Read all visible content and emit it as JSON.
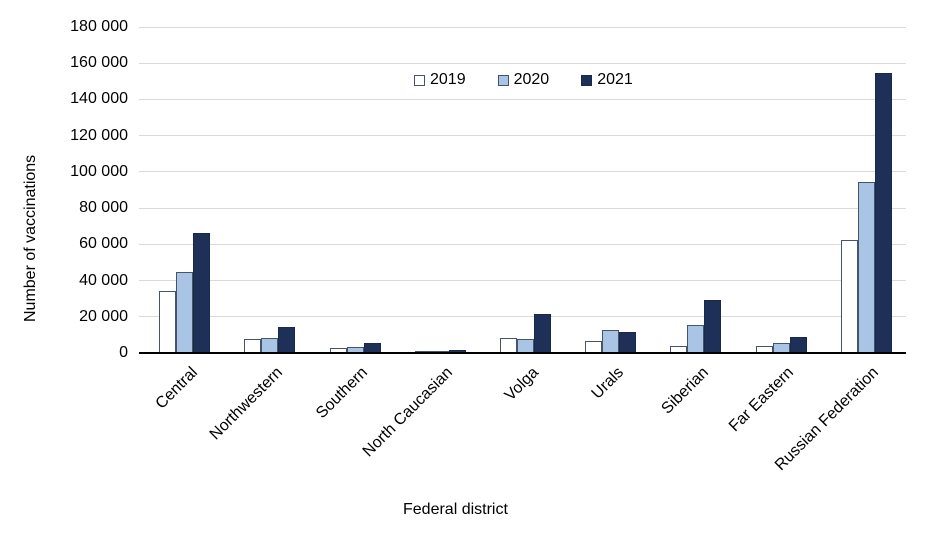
{
  "chart_data": {
    "type": "bar",
    "title": "",
    "xlabel": "Federal district",
    "ylabel": "Number of vaccinations",
    "categories": [
      "Central",
      "Northwestern",
      "Southern",
      "North Caucasian",
      "Volga",
      "Urals",
      "Siberian",
      "Far Eastern",
      "Russian Federation"
    ],
    "series": [
      {
        "name": "2019",
        "fill": "#ffffff",
        "border": "#44546a",
        "values": [
          33500,
          7000,
          2000,
          300,
          8000,
          6000,
          3500,
          3500,
          62000
        ]
      },
      {
        "name": "2020",
        "fill": "#a9c4e4",
        "border": "#44546a",
        "values": [
          44000,
          8000,
          3000,
          400,
          7000,
          12000,
          15000,
          5000,
          94000
        ]
      },
      {
        "name": "2021",
        "fill": "#1f3058",
        "border": "#1a2949",
        "values": [
          65500,
          14000,
          5000,
          1100,
          21000,
          11000,
          28500,
          8500,
          154000
        ]
      }
    ],
    "ylim": [
      0,
      180000
    ],
    "ytick_step": 20000,
    "ytick_labels": [
      "0",
      "20 000",
      "40 000",
      "60 000",
      "80 000",
      "100 000",
      "120 000",
      "140 000",
      "160 000",
      "180 000"
    ],
    "legend_position": "top-center",
    "legend_labels": [
      "2019",
      "2020",
      "2021"
    ],
    "grid": "horizontal-only",
    "gridline_color": "#d9d9d9",
    "axis_line_color": "#000000",
    "text_color": "#000000"
  },
  "layout_labels": {
    "y_axis_title": "Number of vaccinations",
    "x_axis_title": "Federal district"
  }
}
